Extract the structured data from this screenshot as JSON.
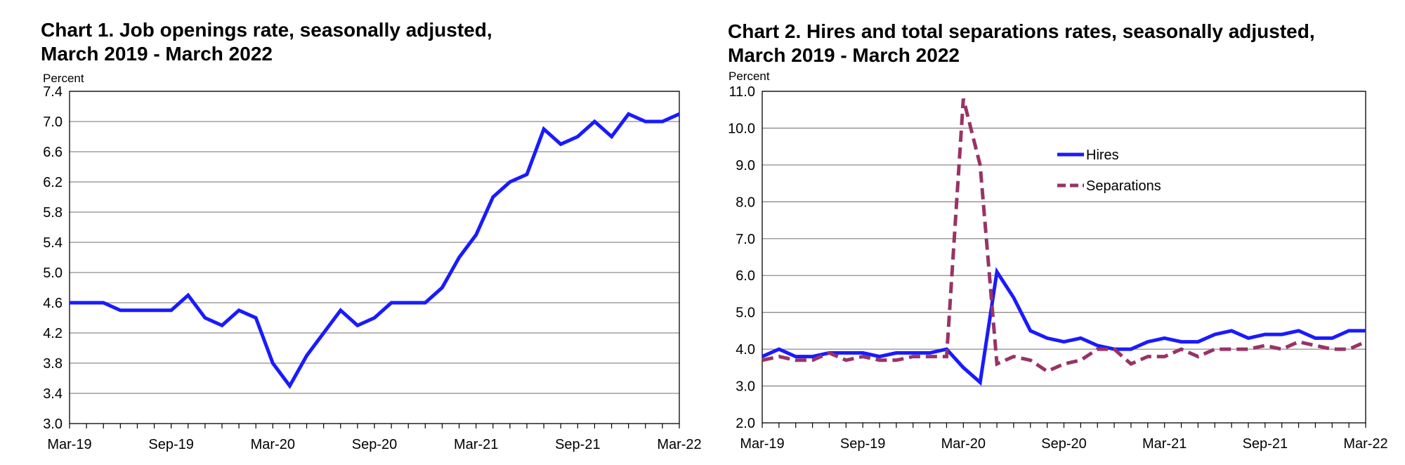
{
  "charts": [
    {
      "title_line1": "Chart 1. Job openings rate, seasonally adjusted,",
      "title_line2": "March 2019 - March 2022",
      "ylabel": "Percent"
    },
    {
      "title_line1": "Chart 2. Hires and total separations rates, seasonally adjusted,",
      "title_line2": "March 2019 - March 2022",
      "ylabel": "Percent"
    }
  ],
  "chart_data": [
    {
      "type": "line",
      "title": "Chart 1. Job openings rate, seasonally adjusted, March 2019 - March 2022",
      "xlabel": "",
      "ylabel": "Percent",
      "ylim": [
        3.0,
        7.4
      ],
      "yticks": [
        "3.0",
        "3.4",
        "3.8",
        "4.2",
        "4.6",
        "5.0",
        "5.4",
        "5.8",
        "6.2",
        "6.6",
        "7.0",
        "7.4"
      ],
      "xticks": [
        "Mar-19",
        "Sep-19",
        "Mar-20",
        "Sep-20",
        "Mar-21",
        "Sep-21",
        "Mar-22"
      ],
      "x": [
        "Mar-19",
        "Apr-19",
        "May-19",
        "Jun-19",
        "Jul-19",
        "Aug-19",
        "Sep-19",
        "Oct-19",
        "Nov-19",
        "Dec-19",
        "Jan-20",
        "Feb-20",
        "Mar-20",
        "Apr-20",
        "May-20",
        "Jun-20",
        "Jul-20",
        "Aug-20",
        "Sep-20",
        "Oct-20",
        "Nov-20",
        "Dec-20",
        "Jan-21",
        "Feb-21",
        "Mar-21",
        "Apr-21",
        "May-21",
        "Jun-21",
        "Jul-21",
        "Aug-21",
        "Sep-21",
        "Oct-21",
        "Nov-21",
        "Dec-21",
        "Jan-22",
        "Feb-22",
        "Mar-22"
      ],
      "grid": true,
      "series": [
        {
          "color": "#1a1aff",
          "dash": "solid",
          "values": [
            4.6,
            4.6,
            4.6,
            4.5,
            4.5,
            4.5,
            4.5,
            4.7,
            4.4,
            4.3,
            4.5,
            4.4,
            3.8,
            3.5,
            3.9,
            4.2,
            4.5,
            4.3,
            4.4,
            4.6,
            4.6,
            4.6,
            4.8,
            5.2,
            5.5,
            6.0,
            6.2,
            6.3,
            6.9,
            6.7,
            6.8,
            7.0,
            6.8,
            7.1,
            7.0,
            7.0,
            7.1
          ]
        }
      ]
    },
    {
      "type": "line",
      "title": "Chart 2. Hires and total separations rates, seasonally adjusted, March 2019 - March 2022",
      "xlabel": "",
      "ylabel": "Percent",
      "ylim": [
        2.0,
        11.0
      ],
      "yticks": [
        "2.0",
        "3.0",
        "4.0",
        "5.0",
        "6.0",
        "7.0",
        "8.0",
        "9.0",
        "10.0",
        "11.0"
      ],
      "xticks": [
        "Mar-19",
        "Sep-19",
        "Mar-20",
        "Sep-20",
        "Mar-21",
        "Sep-21",
        "Mar-22"
      ],
      "x": [
        "Mar-19",
        "Apr-19",
        "May-19",
        "Jun-19",
        "Jul-19",
        "Aug-19",
        "Sep-19",
        "Oct-19",
        "Nov-19",
        "Dec-19",
        "Jan-20",
        "Feb-20",
        "Mar-20",
        "Apr-20",
        "May-20",
        "Jun-20",
        "Jul-20",
        "Aug-20",
        "Sep-20",
        "Oct-20",
        "Nov-20",
        "Dec-20",
        "Jan-21",
        "Feb-21",
        "Mar-21",
        "Apr-21",
        "May-21",
        "Jun-21",
        "Jul-21",
        "Aug-21",
        "Sep-21",
        "Oct-21",
        "Nov-21",
        "Dec-21",
        "Jan-22",
        "Feb-22",
        "Mar-22"
      ],
      "grid": true,
      "legend_position": "upper-right, inside plot",
      "series": [
        {
          "name": "Hires",
          "color": "#1a1aff",
          "dash": "solid",
          "values": [
            3.8,
            4.0,
            3.8,
            3.8,
            3.9,
            3.9,
            3.9,
            3.8,
            3.9,
            3.9,
            3.9,
            4.0,
            3.5,
            3.1,
            6.1,
            5.4,
            4.5,
            4.3,
            4.2,
            4.3,
            4.1,
            4.0,
            4.0,
            4.2,
            4.3,
            4.2,
            4.2,
            4.4,
            4.5,
            4.3,
            4.4,
            4.4,
            4.5,
            4.3,
            4.3,
            4.5,
            4.5
          ]
        },
        {
          "name": "Separations",
          "color": "#993366",
          "dash": "dashed",
          "values": [
            3.7,
            3.8,
            3.7,
            3.7,
            3.9,
            3.7,
            3.8,
            3.7,
            3.7,
            3.8,
            3.8,
            3.8,
            10.8,
            9.0,
            3.6,
            3.8,
            3.7,
            3.4,
            3.6,
            3.7,
            4.0,
            4.0,
            3.6,
            3.8,
            3.8,
            4.0,
            3.8,
            4.0,
            4.0,
            4.0,
            4.1,
            4.0,
            4.2,
            4.1,
            4.0,
            4.0,
            4.2
          ]
        }
      ]
    }
  ]
}
